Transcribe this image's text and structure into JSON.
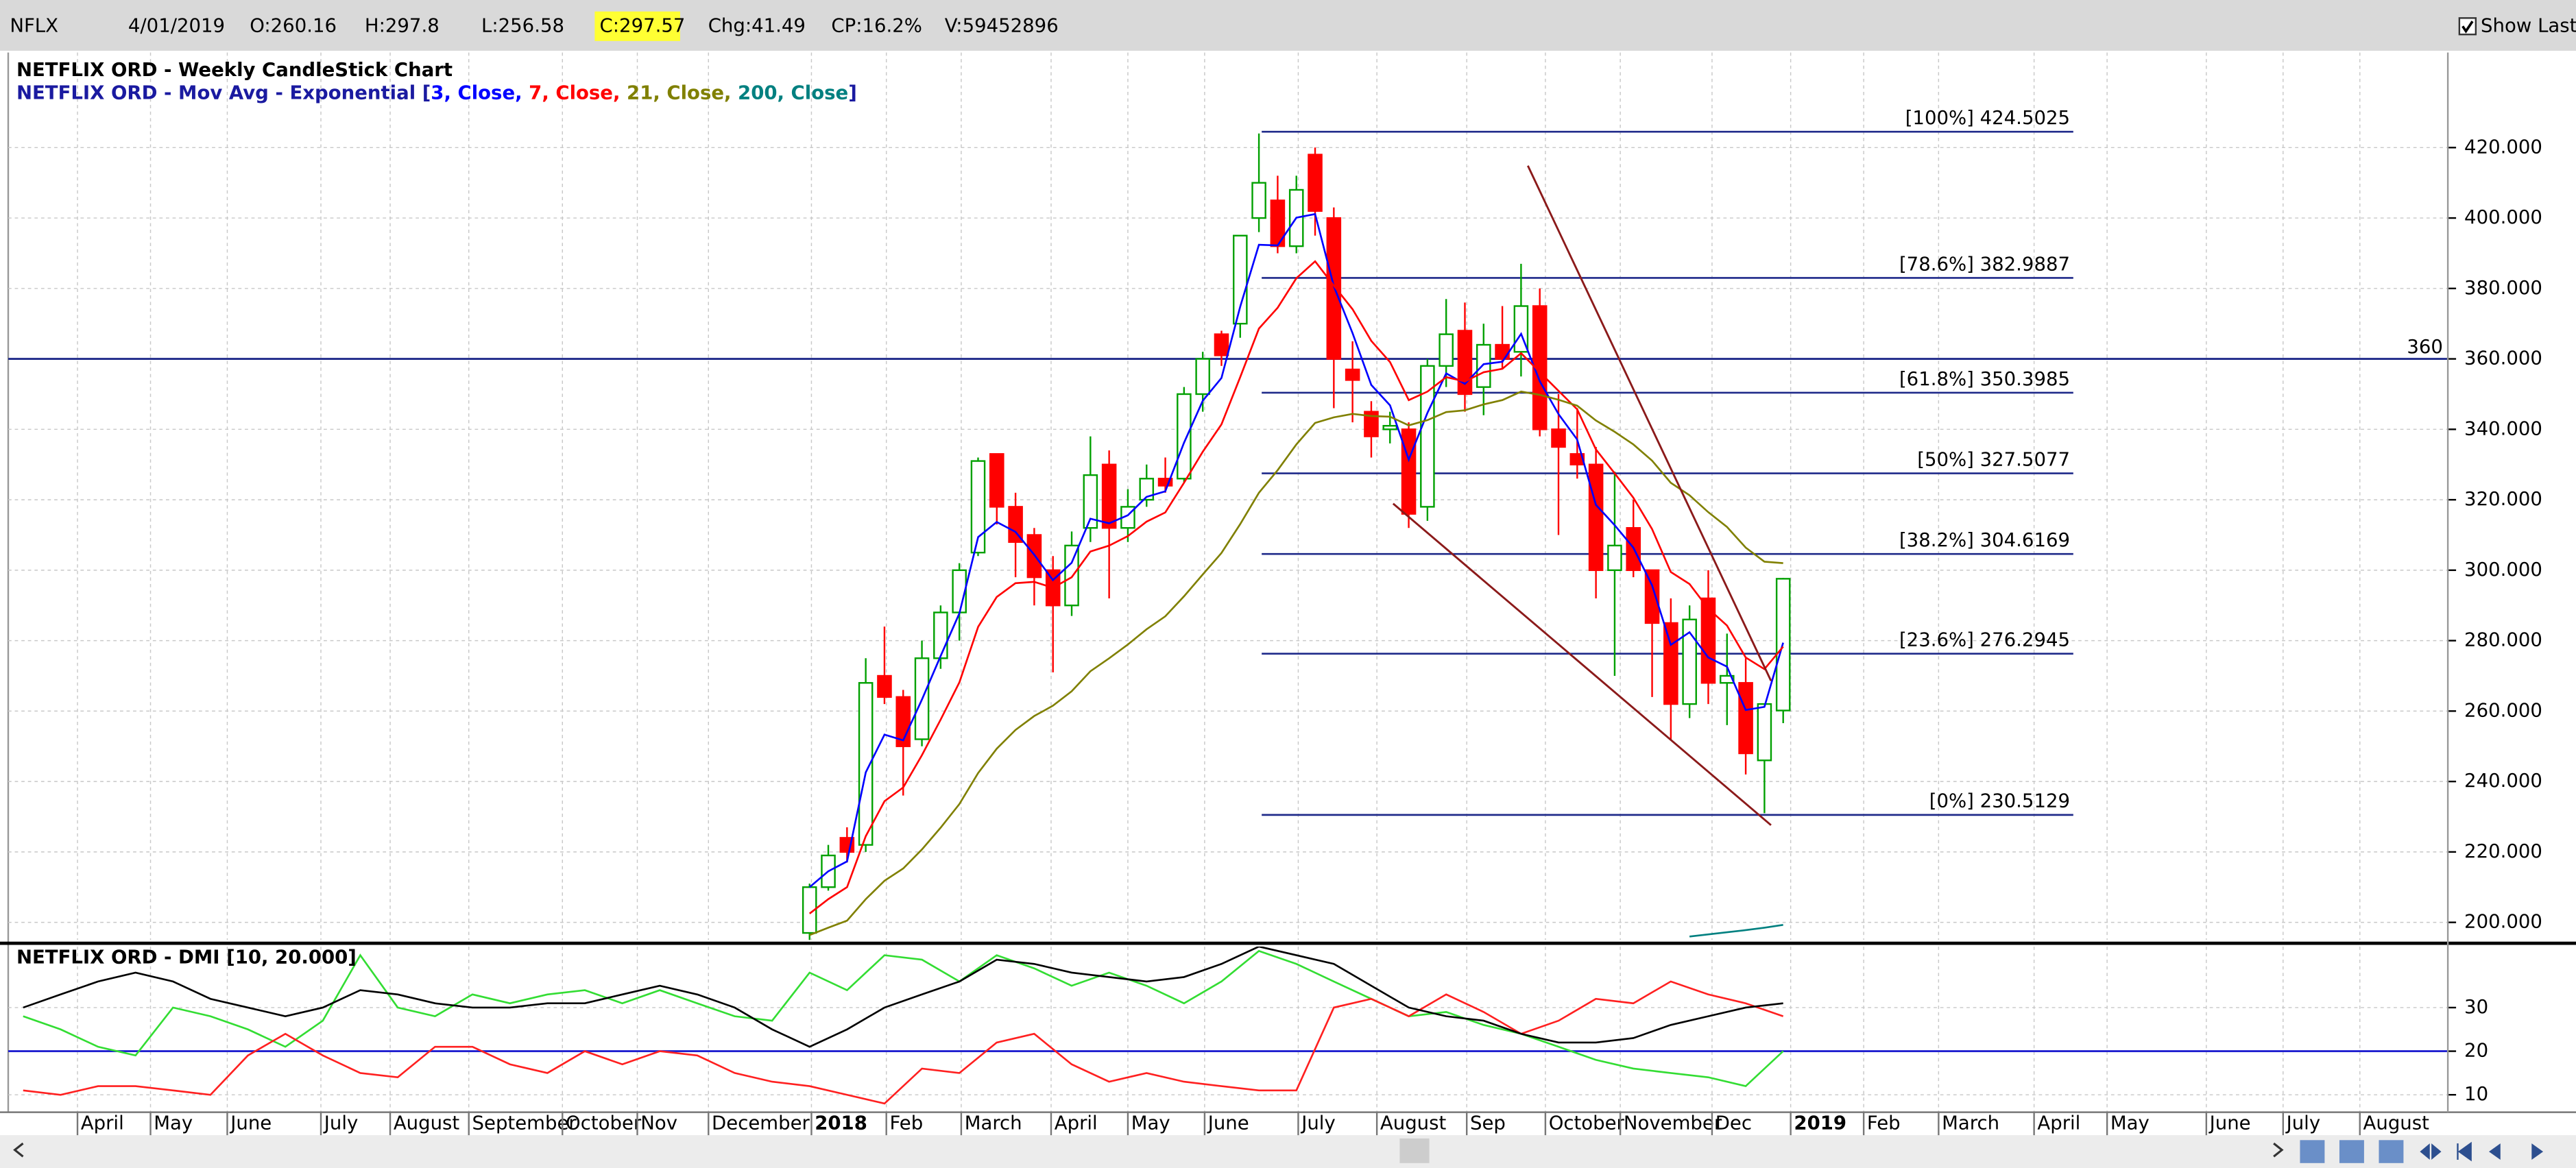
{
  "header": {
    "symbol": "NFLX",
    "date": "4/01/2019",
    "open": "O:260.16",
    "high": "H:297.8",
    "low": "L:256.58",
    "close": "C:297.57",
    "change": "Chg:41.49",
    "change_percent": "CP:16.2%",
    "volume": "V:59452896",
    "show_last": "Show Last"
  },
  "chart_data": [
    {
      "type": "candlestick",
      "title": "NETFLIX ORD - Weekly CandleStick Chart",
      "legend_prefix": "NETFLIX ORD - Mov Avg - Exponential [",
      "legend_suffix": "]",
      "up_color": "#00a000",
      "down_color": "#ff0000",
      "open": [
        197,
        210,
        224,
        222,
        270,
        264,
        252,
        275,
        288,
        305,
        333,
        318,
        310,
        300,
        290,
        312,
        330,
        312,
        320,
        326,
        326,
        350,
        367,
        370,
        400,
        405,
        392,
        418,
        400,
        357,
        345,
        340,
        340,
        318,
        358,
        368,
        352,
        364,
        362,
        375,
        340,
        333,
        330,
        300,
        312,
        300,
        285,
        262,
        292,
        268,
        268,
        246,
        260.16
      ],
      "high": [
        211,
        222,
        227,
        275,
        284,
        266,
        280,
        290,
        302,
        332,
        333,
        322,
        312,
        304,
        311,
        338,
        334,
        323,
        330,
        332,
        352,
        362,
        368,
        395,
        424,
        412,
        412,
        420,
        403,
        365,
        348,
        345,
        342,
        360,
        377,
        376,
        370,
        375,
        387,
        380,
        350,
        346,
        335,
        328,
        320,
        300,
        292,
        290,
        300,
        282,
        275,
        262,
        297.8
      ],
      "low": [
        195,
        209,
        217,
        220,
        262,
        236,
        250,
        272,
        280,
        304,
        313,
        298,
        290,
        271,
        287,
        308,
        292,
        308,
        318,
        322,
        325,
        345,
        358,
        366,
        396,
        390,
        390,
        395,
        346,
        342,
        332,
        336,
        312,
        314,
        352,
        345,
        344,
        357,
        355,
        338,
        310,
        326,
        292,
        270,
        298,
        264,
        252,
        258,
        262,
        256,
        242,
        231,
        256.58
      ],
      "close": [
        210,
        219,
        220,
        268,
        264,
        250,
        275,
        288,
        300,
        331,
        318,
        308,
        298,
        290,
        307,
        327,
        312,
        318,
        326,
        324,
        350,
        360,
        361,
        395,
        410,
        392,
        408,
        402,
        360,
        354,
        338,
        341,
        316,
        358,
        367,
        350,
        364,
        360,
        375,
        340,
        335,
        330,
        300,
        307,
        300,
        285,
        262,
        286,
        268,
        270,
        248,
        262,
        297.57
      ],
      "series": [
        {
          "name": "3, Close,",
          "color": "#0000ff",
          "values": [
            210,
            214.5,
            217.3,
            242.6,
            253.3,
            251.7,
            263.3,
            275.7,
            287.8,
            309.4,
            313.7,
            310.9,
            304.4,
            297.2,
            302.1,
            314.6,
            313.3,
            315.6,
            320.8,
            322.4,
            336.2,
            348.1,
            354.6,
            374.8,
            392.4,
            392.2,
            400.1,
            401.1,
            380.6,
            367.3,
            352.6,
            346.8,
            331.4,
            344.7,
            355.9,
            352.9,
            358.5,
            359.2,
            367.1,
            353.6,
            344.3,
            337.1,
            318.6,
            312.8,
            306.4,
            295.7,
            278.8,
            282.4,
            275.2,
            272.6,
            260.3,
            261.2,
            279.4
          ]
        },
        {
          "name": "7, Close,",
          "color": "#ff0000",
          "values": [
            202.5,
            206.6,
            210.0,
            224.5,
            234.4,
            238.3,
            247.5,
            257.6,
            268.2,
            283.9,
            292.4,
            296.3,
            296.7,
            295.0,
            298.0,
            305.3,
            307.0,
            309.7,
            313.8,
            316.4,
            324.8,
            333.6,
            341.4,
            354.8,
            368.6,
            374.5,
            382.9,
            387.7,
            380.8,
            374.1,
            365.1,
            359.1,
            348.3,
            350.7,
            354.8,
            353.6,
            356.2,
            357.2,
            361.6,
            356.2,
            350.9,
            345.7,
            334.3,
            327.5,
            320.6,
            311.7,
            299.5,
            296.1,
            289.1,
            284.3,
            275.2,
            271.9,
            278.3
          ]
        },
        {
          "name": "21, Close,",
          "color": "#808000",
          "values": [
            196.4,
            198.5,
            200.5,
            206.6,
            211.8,
            215.3,
            220.7,
            226.9,
            233.6,
            242.4,
            249.3,
            254.6,
            258.6,
            261.5,
            265.6,
            271.3,
            275.0,
            278.9,
            283.2,
            286.9,
            292.6,
            298.8,
            304.9,
            313.1,
            322.0,
            328.4,
            335.7,
            341.8,
            343.4,
            344.4,
            343.8,
            343.6,
            341.1,
            342.6,
            344.9,
            345.4,
            347.1,
            348.3,
            350.7,
            349.8,
            348.4,
            346.7,
            342.5,
            339.3,
            335.7,
            331.1,
            324.8,
            321.3,
            316.5,
            312.3,
            306.4,
            302.4,
            302.0
          ]
        },
        {
          "name": "200, Close",
          "color": "#008080",
          "values": [
            null,
            null,
            null,
            null,
            null,
            null,
            null,
            null,
            null,
            null,
            null,
            null,
            null,
            null,
            null,
            null,
            null,
            null,
            null,
            null,
            null,
            null,
            null,
            null,
            null,
            null,
            null,
            null,
            null,
            null,
            null,
            null,
            null,
            null,
            null,
            null,
            null,
            null,
            null,
            null,
            null,
            null,
            null,
            null,
            null,
            null,
            null,
            196,
            196.6,
            197.2,
            197.8,
            198.5,
            199.3
          ]
        }
      ],
      "fibonacci": {
        "color": "#1f2a8a",
        "levels": [
          {
            "value": 424.5025,
            "label": "[100%] 424.5025"
          },
          {
            "value": 382.9887,
            "label": "[78.6%] 382.9887"
          },
          {
            "value": 350.3985,
            "label": "[61.8%] 350.3985"
          },
          {
            "value": 327.5077,
            "label": "[50%] 327.5077"
          },
          {
            "value": 304.6169,
            "label": "[38.2%] 304.6169"
          },
          {
            "value": 276.2945,
            "label": "[23.6%] 276.2945"
          },
          {
            "value": 230.5129,
            "label": "[0%] 230.5129"
          }
        ]
      },
      "reference_line": {
        "value": 360,
        "color": "#1f2a8a"
      },
      "xlim": [
        -42.8,
        87.5
      ],
      "xticks": [
        {
          "value": -39.1,
          "label": "April"
        },
        {
          "value": -35.2,
          "label": "May"
        },
        {
          "value": -31.1,
          "label": "June"
        },
        {
          "value": -26.1,
          "label": "July"
        },
        {
          "value": -22.4,
          "label": "August"
        },
        {
          "value": -18.2,
          "label": "September"
        },
        {
          "value": -13.2,
          "label": "October"
        },
        {
          "value": -9.2,
          "label": "Nov"
        },
        {
          "value": -5.4,
          "label": "December"
        },
        {
          "value": 0.1,
          "label": "2018"
        },
        {
          "value": 4.1,
          "label": "Feb"
        },
        {
          "value": 8.1,
          "label": "March"
        },
        {
          "value": 12.9,
          "label": "April"
        },
        {
          "value": 17.0,
          "label": "May"
        },
        {
          "value": 21.1,
          "label": "June"
        },
        {
          "value": 26.1,
          "label": "July"
        },
        {
          "value": 30.3,
          "label": "August"
        },
        {
          "value": 35.1,
          "label": "Sep"
        },
        {
          "value": 39.3,
          "label": "October"
        },
        {
          "value": 43.3,
          "label": "November"
        },
        {
          "value": 48.2,
          "label": "Dec"
        },
        {
          "value": 52.4,
          "label": "2019"
        },
        {
          "value": 56.3,
          "label": "Feb"
        },
        {
          "value": 60.3,
          "label": "March"
        },
        {
          "value": 65.4,
          "label": "April"
        },
        {
          "value": 69.3,
          "label": "May"
        },
        {
          "value": 74.6,
          "label": "June"
        },
        {
          "value": 78.7,
          "label": "July"
        },
        {
          "value": 82.8,
          "label": "August"
        }
      ],
      "ylim": [
        195,
        447
      ],
      "yticks": [
        {
          "value": 200,
          "label": "200.000"
        },
        {
          "value": 220,
          "label": "220.000"
        },
        {
          "value": 240,
          "label": "240.000"
        },
        {
          "value": 260,
          "label": "260.000"
        },
        {
          "value": 280,
          "label": "280.000"
        },
        {
          "value": 300,
          "label": "300.000"
        },
        {
          "value": 320,
          "label": "320.000"
        },
        {
          "value": 340,
          "label": "340.000"
        },
        {
          "value": 360,
          "label": "360.000"
        },
        {
          "value": 380,
          "label": "380.000"
        },
        {
          "value": 400,
          "label": "400.000"
        },
        {
          "value": 420,
          "label": "420.000"
        }
      ],
      "grid": true
    },
    {
      "type": "line",
      "title": "NETFLIX ORD - DMI [10, 20.000]",
      "x": [
        -42,
        -40,
        -38,
        -36,
        -34,
        -32,
        -30,
        -28,
        -26,
        -24,
        -22,
        -20,
        -18,
        -16,
        -14,
        -12,
        -10,
        -8,
        -6,
        -4,
        -2,
        0,
        2,
        4,
        6,
        8,
        10,
        12,
        14,
        16,
        18,
        20,
        22,
        24,
        26,
        28,
        30,
        32,
        34,
        36,
        38,
        40,
        42,
        44,
        46,
        48,
        50,
        52
      ],
      "series": [
        {
          "color": "#33dd33",
          "values": [
            28,
            25,
            21,
            19,
            30,
            28,
            25,
            21,
            27,
            42,
            30,
            28,
            33,
            31,
            33,
            34,
            31,
            34,
            31,
            28,
            27,
            38,
            34,
            42,
            41,
            36,
            42,
            39,
            35,
            38,
            35,
            31,
            36,
            43,
            40,
            36,
            32,
            28,
            29,
            26,
            24,
            21,
            18,
            16,
            15,
            14,
            12,
            20
          ]
        },
        {
          "color": "#ff2020",
          "values": [
            11,
            10,
            12,
            12,
            11,
            10,
            19,
            24,
            19,
            15,
            14,
            21,
            21,
            17,
            15,
            20,
            17,
            20,
            19,
            15,
            13,
            12,
            10,
            8,
            16,
            15,
            22,
            24,
            17,
            13,
            15,
            13,
            12,
            11,
            11,
            30,
            32,
            28,
            33,
            29,
            24,
            27,
            32,
            31,
            36,
            33,
            31,
            28
          ]
        },
        {
          "color": "#000000",
          "values": [
            30,
            33,
            36,
            38,
            36,
            32,
            30,
            28,
            30,
            34,
            33,
            31,
            30,
            30,
            31,
            31,
            33,
            35,
            33,
            30,
            25,
            21,
            25,
            30,
            33,
            36,
            41,
            40,
            38,
            37,
            36,
            37,
            40,
            44,
            42,
            40,
            35,
            30,
            28,
            27,
            24,
            22,
            22,
            23,
            26,
            28,
            30,
            31
          ]
        }
      ],
      "reference_line": {
        "value": 20,
        "color": "#2020d0"
      },
      "xlim": [
        -42.8,
        87.5
      ],
      "ylim": [
        6,
        44
      ],
      "yticks": [
        10,
        20,
        30
      ],
      "grid": true
    }
  ]
}
